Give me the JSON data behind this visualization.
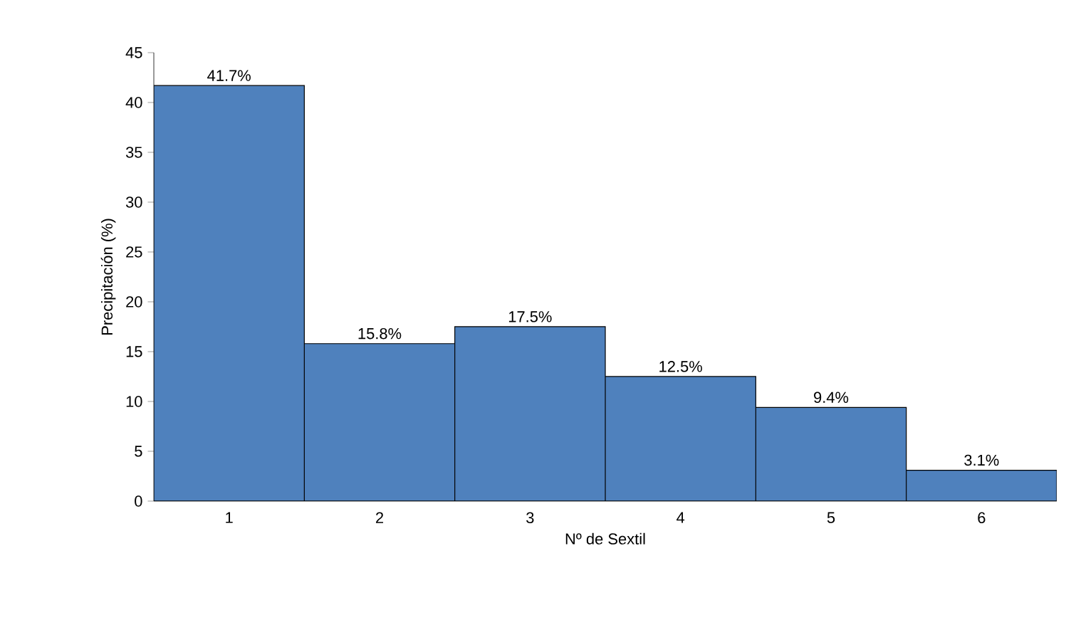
{
  "chart_data": {
    "type": "bar",
    "xlabel": "Nº de Sextil",
    "ylabel": "Precipitación (%)",
    "categories": [
      "1",
      "2",
      "3",
      "4",
      "5",
      "6"
    ],
    "values": [
      41.7,
      15.8,
      17.5,
      12.5,
      9.4,
      3.1
    ],
    "value_labels": [
      "41.7%",
      "15.8%",
      "17.5%",
      "12.5%",
      "9.4%",
      "3.1%"
    ],
    "color": "#4f81bd",
    "ylim": [
      0,
      45
    ],
    "yticks": [
      0,
      5,
      10,
      15,
      20,
      25,
      30,
      35,
      40,
      45
    ],
    "grid": false
  }
}
